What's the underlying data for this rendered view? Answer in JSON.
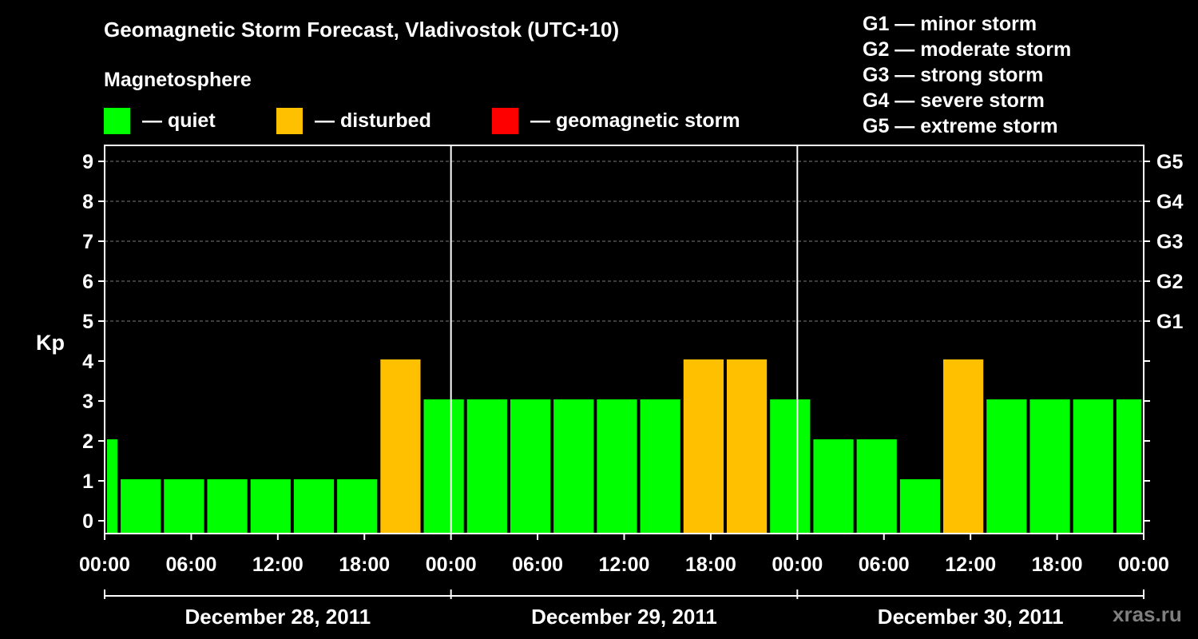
{
  "title": "Geomagnetic Storm Forecast, Vladivostok (UTC+10)",
  "legend": {
    "heading": "Magnetosphere",
    "items": [
      {
        "color": "#00ff00",
        "label": "— quiet"
      },
      {
        "color": "#ffc000",
        "label": "— disturbed"
      },
      {
        "color": "#ff0000",
        "label": "— geomagnetic storm"
      }
    ]
  },
  "storm_scale": [
    "G1 — minor storm",
    "G2 — moderate storm",
    "G3 — strong storm",
    "G4 — severe storm",
    "G5 — extreme storm"
  ],
  "watermark": "xras.ru",
  "colors": {
    "quiet": "#00ff00",
    "disturbed": "#ffc000",
    "storm": "#ff0000",
    "background": "#000000"
  },
  "chart_data": {
    "type": "bar",
    "ylabel": "Kp",
    "ylim": [
      0,
      9
    ],
    "y_ticks": [
      0,
      1,
      2,
      3,
      4,
      5,
      6,
      7,
      8,
      9
    ],
    "right_axis_labels": [
      {
        "kp": 5,
        "label": "G1"
      },
      {
        "kp": 6,
        "label": "G2"
      },
      {
        "kp": 7,
        "label": "G3"
      },
      {
        "kp": 8,
        "label": "G4"
      },
      {
        "kp": 9,
        "label": "G5"
      }
    ],
    "x_start_hour": 0,
    "x_end_hour": 72,
    "x_tick_hours": [
      0,
      6,
      12,
      18,
      24,
      30,
      36,
      42,
      48,
      54,
      60,
      66,
      72
    ],
    "x_tick_labels": [
      "00:00",
      "06:00",
      "12:00",
      "18:00",
      "00:00",
      "06:00",
      "12:00",
      "18:00",
      "00:00",
      "06:00",
      "12:00",
      "18:00",
      "00:00"
    ],
    "day_separators_hours": [
      24,
      48
    ],
    "days": [
      {
        "label": "December 28, 2011",
        "start_hour": 0,
        "end_hour": 24
      },
      {
        "label": "December 29, 2011",
        "start_hour": 24,
        "end_hour": 48
      },
      {
        "label": "December 30, 2011",
        "start_hour": 48,
        "end_hour": 72
      }
    ],
    "bars": [
      {
        "start_hour": 0,
        "end_hour": 1,
        "kp": 2,
        "level": "quiet"
      },
      {
        "start_hour": 1,
        "end_hour": 4,
        "kp": 1,
        "level": "quiet"
      },
      {
        "start_hour": 4,
        "end_hour": 7,
        "kp": 1,
        "level": "quiet"
      },
      {
        "start_hour": 7,
        "end_hour": 10,
        "kp": 1,
        "level": "quiet"
      },
      {
        "start_hour": 10,
        "end_hour": 13,
        "kp": 1,
        "level": "quiet"
      },
      {
        "start_hour": 13,
        "end_hour": 16,
        "kp": 1,
        "level": "quiet"
      },
      {
        "start_hour": 16,
        "end_hour": 19,
        "kp": 1,
        "level": "quiet"
      },
      {
        "start_hour": 19,
        "end_hour": 22,
        "kp": 4,
        "level": "disturbed"
      },
      {
        "start_hour": 22,
        "end_hour": 25,
        "kp": 3,
        "level": "quiet"
      },
      {
        "start_hour": 25,
        "end_hour": 28,
        "kp": 3,
        "level": "quiet"
      },
      {
        "start_hour": 28,
        "end_hour": 31,
        "kp": 3,
        "level": "quiet"
      },
      {
        "start_hour": 31,
        "end_hour": 34,
        "kp": 3,
        "level": "quiet"
      },
      {
        "start_hour": 34,
        "end_hour": 37,
        "kp": 3,
        "level": "quiet"
      },
      {
        "start_hour": 37,
        "end_hour": 40,
        "kp": 3,
        "level": "quiet"
      },
      {
        "start_hour": 40,
        "end_hour": 43,
        "kp": 4,
        "level": "disturbed"
      },
      {
        "start_hour": 43,
        "end_hour": 46,
        "kp": 4,
        "level": "disturbed"
      },
      {
        "start_hour": 46,
        "end_hour": 49,
        "kp": 3,
        "level": "quiet"
      },
      {
        "start_hour": 49,
        "end_hour": 52,
        "kp": 2,
        "level": "quiet"
      },
      {
        "start_hour": 52,
        "end_hour": 55,
        "kp": 2,
        "level": "quiet"
      },
      {
        "start_hour": 55,
        "end_hour": 58,
        "kp": 1,
        "level": "quiet"
      },
      {
        "start_hour": 58,
        "end_hour": 61,
        "kp": 4,
        "level": "disturbed"
      },
      {
        "start_hour": 61,
        "end_hour": 64,
        "kp": 3,
        "level": "quiet"
      },
      {
        "start_hour": 64,
        "end_hour": 67,
        "kp": 3,
        "level": "quiet"
      },
      {
        "start_hour": 67,
        "end_hour": 70,
        "kp": 3,
        "level": "quiet"
      },
      {
        "start_hour": 70,
        "end_hour": 72,
        "kp": 3,
        "level": "quiet"
      }
    ]
  }
}
